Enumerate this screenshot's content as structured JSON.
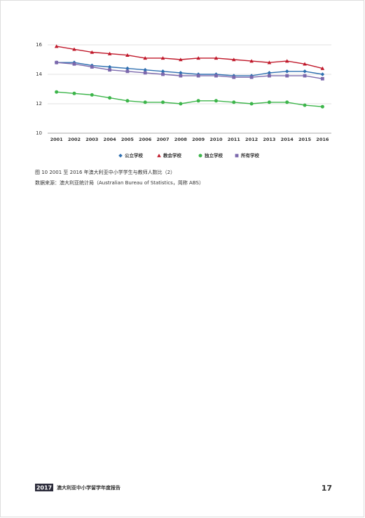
{
  "chart_data": {
    "type": "line",
    "categories": [
      "2001",
      "2002",
      "2003",
      "2004",
      "2005",
      "2006",
      "2007",
      "2008",
      "2009",
      "2010",
      "2011",
      "2012",
      "2013",
      "2014",
      "2015",
      "2016"
    ],
    "series": [
      {
        "name": "公立学校",
        "color": "#2e6fb0",
        "marker": "diamond",
        "values": [
          14.8,
          14.8,
          14.6,
          14.5,
          14.4,
          14.3,
          14.2,
          14.1,
          14.0,
          14.0,
          13.9,
          13.9,
          14.1,
          14.2,
          14.2,
          14.0
        ]
      },
      {
        "name": "教会学校",
        "color": "#c0182a",
        "marker": "triangle",
        "values": [
          15.9,
          15.7,
          15.5,
          15.4,
          15.3,
          15.1,
          15.1,
          15.0,
          15.1,
          15.1,
          15.0,
          14.9,
          14.8,
          14.9,
          14.7,
          14.4
        ]
      },
      {
        "name": "独立学校",
        "color": "#3cb54a",
        "marker": "circle",
        "values": [
          12.8,
          12.7,
          12.6,
          12.4,
          12.2,
          12.1,
          12.1,
          12.0,
          12.2,
          12.2,
          12.1,
          12.0,
          12.1,
          12.1,
          11.9,
          11.8
        ]
      },
      {
        "name": "所有学校",
        "color": "#7b68ac",
        "marker": "square",
        "values": [
          14.8,
          14.7,
          14.5,
          14.3,
          14.2,
          14.1,
          14.0,
          13.9,
          13.9,
          13.9,
          13.8,
          13.8,
          13.9,
          13.9,
          13.9,
          13.7
        ]
      }
    ],
    "ylim": [
      10,
      16
    ],
    "yticks": [
      10,
      12,
      14,
      16
    ],
    "grid": true,
    "legend": "bottom"
  },
  "caption": "图 10 2001 至 2016 年澳大利亚中小学学生与教师人数比（2）",
  "source": "数据来源：澳大利亚统计局（Australian Bureau of Statistics，简称 ABS）",
  "footer": {
    "year": "2017",
    "title": "澳大利亚中小学留学年度报告",
    "page_number": "17"
  }
}
